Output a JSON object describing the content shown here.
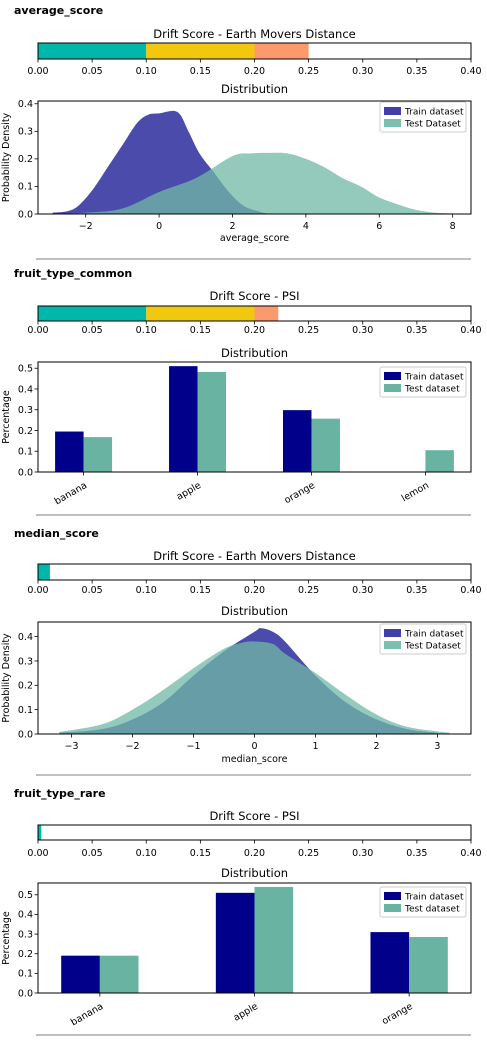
{
  "sections": [
    {
      "title": "average_score",
      "drift": {
        "title": "Drift Score - Earth Movers Distance",
        "score": 0.25,
        "xlim": [
          0,
          0.4
        ],
        "ticks": [
          0,
          0.05,
          0.1,
          0.15,
          0.2,
          0.25,
          0.3,
          0.35,
          0.4
        ],
        "tick_labels": [
          "0.00",
          "0.05",
          "0.10",
          "0.15",
          "0.20",
          "0.25",
          "0.30",
          "0.35",
          "0.40"
        ]
      },
      "dist": {
        "type": "area",
        "title": "Distribution",
        "xlabel": "average_score",
        "ylabel": "Probability Density",
        "xlim": [
          -3.3,
          8.5
        ],
        "ylim": [
          0,
          0.41
        ],
        "xticks": [
          -2,
          0,
          2,
          4,
          6,
          8
        ],
        "xtick_labels": [
          "−2",
          "0",
          "2",
          "4",
          "6",
          "8"
        ],
        "yticks": [
          0,
          0.1,
          0.2,
          0.3,
          0.4
        ],
        "ytick_labels": [
          "0.0",
          "0.1",
          "0.2",
          "0.3",
          "0.4"
        ],
        "legend": [
          "Train dataset",
          "Test Dataset"
        ],
        "series": [
          {
            "name": "Train dataset",
            "x": [
              -2.9,
              -2.5,
              -2.2,
              -1.8,
              -1.4,
              -1.0,
              -0.6,
              -0.3,
              0.0,
              0.5,
              0.8,
              1.1,
              1.5,
              1.9,
              2.3,
              2.7,
              3.0
            ],
            "y": [
              0.005,
              0.01,
              0.03,
              0.09,
              0.17,
              0.25,
              0.33,
              0.36,
              0.365,
              0.37,
              0.3,
              0.22,
              0.15,
              0.08,
              0.03,
              0.01,
              0.0
            ]
          },
          {
            "name": "Test Dataset",
            "x": [
              -2.9,
              -2.0,
              -1.0,
              0.0,
              1.0,
              2.0,
              2.5,
              3.0,
              3.5,
              4.0,
              4.5,
              5.0,
              5.5,
              6.0,
              6.5,
              7.0,
              7.5,
              8.0
            ],
            "y": [
              0.0,
              0.005,
              0.02,
              0.08,
              0.13,
              0.21,
              0.22,
              0.222,
              0.22,
              0.2,
              0.17,
              0.13,
              0.1,
              0.06,
              0.035,
              0.015,
              0.005,
              0.002
            ]
          }
        ]
      }
    },
    {
      "title": "fruit_type_common",
      "drift": {
        "title": "Drift Score - PSI",
        "score": 0.222,
        "xlim": [
          0,
          0.4
        ],
        "ticks": [
          0,
          0.05,
          0.1,
          0.15,
          0.2,
          0.25,
          0.3,
          0.35,
          0.4
        ],
        "tick_labels": [
          "0.00",
          "0.05",
          "0.10",
          "0.15",
          "0.20",
          "0.25",
          "0.30",
          "0.35",
          "0.40"
        ]
      },
      "dist": {
        "type": "bar",
        "title": "Distribution",
        "ylabel": "Percentage",
        "ylim": [
          0,
          0.53
        ],
        "yticks": [
          0,
          0.1,
          0.2,
          0.3,
          0.4,
          0.5
        ],
        "ytick_labels": [
          "0.0",
          "0.1",
          "0.2",
          "0.3",
          "0.4",
          "0.5"
        ],
        "categories": [
          "banana",
          "apple",
          "orange",
          "lemon"
        ],
        "legend": [
          "Train dataset",
          "Test dataset"
        ],
        "series": [
          {
            "name": "Train dataset",
            "values": [
              0.195,
              0.51,
              0.298,
              0.0
            ]
          },
          {
            "name": "Test dataset",
            "values": [
              0.168,
              0.482,
              0.257,
              0.105
            ]
          }
        ]
      }
    },
    {
      "title": "median_score",
      "drift": {
        "title": "Drift Score - Earth Movers Distance",
        "score": 0.011,
        "xlim": [
          0,
          0.4
        ],
        "ticks": [
          0,
          0.05,
          0.1,
          0.15,
          0.2,
          0.25,
          0.3,
          0.35,
          0.4
        ],
        "tick_labels": [
          "0.00",
          "0.05",
          "0.10",
          "0.15",
          "0.20",
          "0.25",
          "0.30",
          "0.35",
          "0.40"
        ]
      },
      "dist": {
        "type": "area",
        "title": "Distribution",
        "xlabel": "median_score",
        "ylabel": "Probability Density",
        "xlim": [
          -3.55,
          3.55
        ],
        "ylim": [
          0,
          0.46
        ],
        "xticks": [
          -3,
          -2,
          -1,
          0,
          1,
          2,
          3
        ],
        "xtick_labels": [
          "−3",
          "−2",
          "−1",
          "0",
          "1",
          "2",
          "3"
        ],
        "yticks": [
          0,
          0.1,
          0.2,
          0.3,
          0.4
        ],
        "ytick_labels": [
          "0.0",
          "0.1",
          "0.2",
          "0.3",
          "0.4"
        ],
        "legend": [
          "Train dataset",
          "Test Dataset"
        ],
        "series": [
          {
            "name": "Train dataset",
            "x": [
              -3.2,
              -2.5,
              -2.0,
              -1.5,
              -1.0,
              -0.5,
              0.0,
              0.1,
              0.3,
              0.5,
              1.0,
              1.5,
              2.0,
              2.5,
              3.0
            ],
            "y": [
              0.005,
              0.02,
              0.06,
              0.13,
              0.24,
              0.34,
              0.42,
              0.435,
              0.42,
              0.38,
              0.24,
              0.13,
              0.06,
              0.02,
              0.005
            ]
          },
          {
            "name": "Test Dataset",
            "x": [
              -3.2,
              -2.5,
              -2.0,
              -1.5,
              -1.0,
              -0.5,
              -0.2,
              0.0,
              0.3,
              0.5,
              1.0,
              1.5,
              2.0,
              2.5,
              3.2
            ],
            "y": [
              0.008,
              0.04,
              0.1,
              0.18,
              0.27,
              0.35,
              0.375,
              0.38,
              0.37,
              0.33,
              0.25,
              0.16,
              0.08,
              0.03,
              0.005
            ]
          }
        ]
      }
    },
    {
      "title": "fruit_type_rare",
      "drift": {
        "title": "Drift Score - PSI",
        "score": 0.003,
        "xlim": [
          0,
          0.4
        ],
        "ticks": [
          0,
          0.05,
          0.1,
          0.15,
          0.2,
          0.25,
          0.3,
          0.35,
          0.4
        ],
        "tick_labels": [
          "0.00",
          "0.05",
          "0.10",
          "0.15",
          "0.20",
          "0.25",
          "0.30",
          "0.35",
          "0.40"
        ]
      },
      "dist": {
        "type": "bar",
        "title": "Distribution",
        "ylabel": "Percentage",
        "ylim": [
          0,
          0.56
        ],
        "yticks": [
          0,
          0.1,
          0.2,
          0.3,
          0.4,
          0.5
        ],
        "ytick_labels": [
          "0.0",
          "0.1",
          "0.2",
          "0.3",
          "0.4",
          "0.5"
        ],
        "categories": [
          "banana",
          "apple",
          "orange"
        ],
        "legend": [
          "Train dataset",
          "Test dataset"
        ],
        "series": [
          {
            "name": "Train dataset",
            "values": [
              0.19,
              0.51,
              0.31
            ]
          },
          {
            "name": "Test dataset",
            "values": [
              0.19,
              0.54,
              0.285
            ]
          }
        ]
      }
    }
  ],
  "colors": {
    "drift_low": "#00b8a9",
    "drift_mid": "#f2c80f",
    "drift_high": "#fd9a6b",
    "train_area": "#2b2b9e",
    "test_area": "#6fb8a6",
    "train_bar": "#00008b",
    "test_bar": "#69b3a2",
    "separator": "#9a9a9a"
  },
  "chart_data": [
    {
      "type": "bar",
      "title": "Drift Score - Earth Movers Distance",
      "values": [
        0.25
      ],
      "xlim": [
        0,
        0.4
      ]
    },
    {
      "type": "area",
      "title": "Distribution",
      "xlabel": "average_score",
      "ylabel": "Probability Density",
      "xlim": [
        -3.3,
        8.5
      ],
      "ylim": [
        0,
        0.41
      ]
    },
    {
      "type": "bar",
      "title": "Drift Score - PSI",
      "values": [
        0.222
      ],
      "xlim": [
        0,
        0.4
      ]
    },
    {
      "type": "bar",
      "title": "Distribution",
      "ylabel": "Percentage",
      "categories": [
        "banana",
        "apple",
        "orange",
        "lemon"
      ],
      "series": [
        {
          "name": "Train dataset",
          "values": [
            0.195,
            0.51,
            0.298,
            0.0
          ]
        },
        {
          "name": "Test dataset",
          "values": [
            0.168,
            0.482,
            0.257,
            0.105
          ]
        }
      ]
    },
    {
      "type": "bar",
      "title": "Drift Score - Earth Movers Distance",
      "values": [
        0.011
      ],
      "xlim": [
        0,
        0.4
      ]
    },
    {
      "type": "area",
      "title": "Distribution",
      "xlabel": "median_score",
      "ylabel": "Probability Density",
      "xlim": [
        -3.55,
        3.55
      ],
      "ylim": [
        0,
        0.46
      ]
    },
    {
      "type": "bar",
      "title": "Drift Score - PSI",
      "values": [
        0.003
      ],
      "xlim": [
        0,
        0.4
      ]
    },
    {
      "type": "bar",
      "title": "Distribution",
      "ylabel": "Percentage",
      "categories": [
        "banana",
        "apple",
        "orange"
      ],
      "series": [
        {
          "name": "Train dataset",
          "values": [
            0.19,
            0.51,
            0.31
          ]
        },
        {
          "name": "Test dataset",
          "values": [
            0.19,
            0.54,
            0.285
          ]
        }
      ]
    }
  ]
}
